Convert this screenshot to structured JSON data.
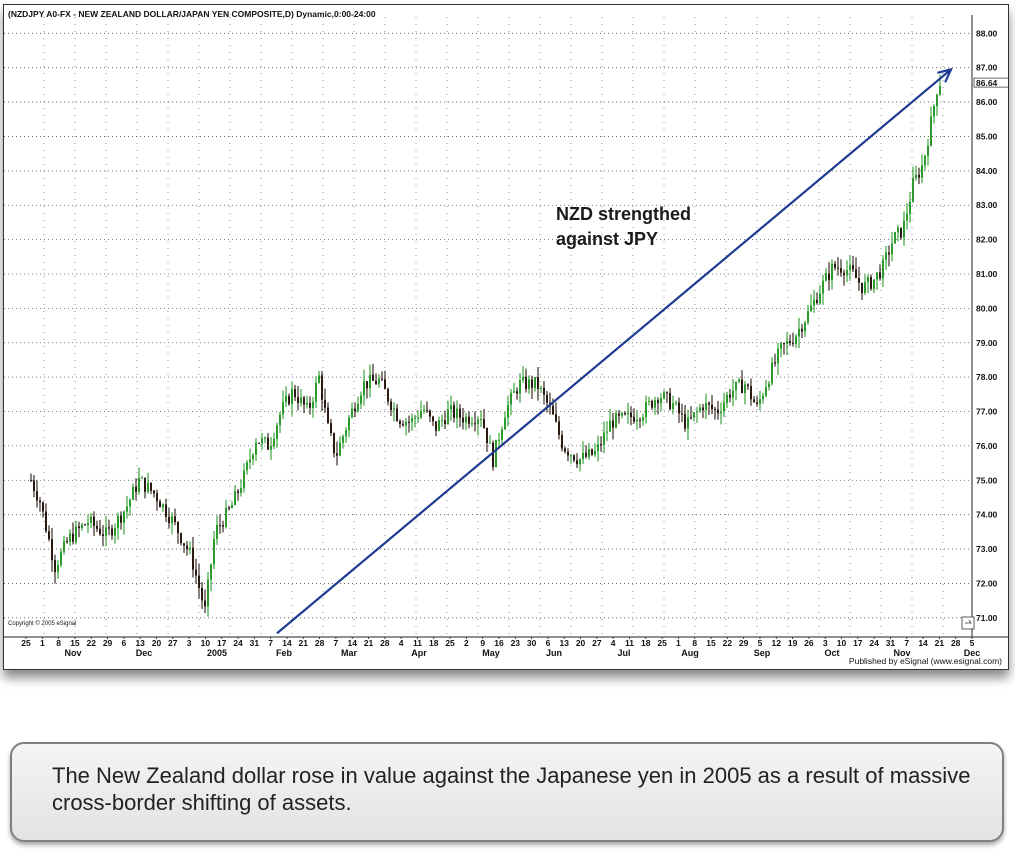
{
  "chart_data": {
    "type": "candlestick",
    "title": "(NZDJPY A0-FX - NEW ZEALAND DOLLAR/JAPAN YEN COMPOSITE,D) Dynamic,0:00-24:00",
    "ylim": [
      70.5,
      88.3
    ],
    "y_ticks": [
      "88.00",
      "87.00",
      "86.64",
      "86.00",
      "85.00",
      "84.00",
      "83.00",
      "82.00",
      "81.00",
      "80.00",
      "79.00",
      "78.00",
      "77.00",
      "76.00",
      "75.00",
      "74.00",
      "73.00",
      "72.00",
      "71.00"
    ],
    "last_price": 86.64,
    "x_day_labels": [
      "25",
      "1",
      "8",
      "15",
      "22",
      "29",
      "6",
      "13",
      "20",
      "27",
      "3",
      "10",
      "17",
      "24",
      "31",
      "7",
      "14",
      "21",
      "28",
      "7",
      "14",
      "21",
      "28",
      "4",
      "11",
      "18",
      "25",
      "2",
      "9",
      "16",
      "23",
      "30",
      "6",
      "13",
      "20",
      "27",
      "4",
      "11",
      "18",
      "25",
      "1",
      "8",
      "15",
      "22",
      "29",
      "5",
      "12",
      "19",
      "26",
      "3",
      "10",
      "17",
      "24",
      "31",
      "7",
      "14",
      "21",
      "28",
      "5"
    ],
    "x_month_labels": [
      "Nov",
      "Dec",
      "2005",
      "Feb",
      "Mar",
      "Apr",
      "May",
      "Jun",
      "Jul",
      "Aug",
      "Sep",
      "Oct",
      "Nov",
      "Dec"
    ],
    "price_path": [
      [
        0,
        75.0
      ],
      [
        9,
        74.4
      ],
      [
        24,
        72.5
      ],
      [
        38,
        73.3
      ],
      [
        57,
        73.8
      ],
      [
        76,
        73.4
      ],
      [
        95,
        74.2
      ],
      [
        108,
        75.0
      ],
      [
        124,
        74.6
      ],
      [
        142,
        73.8
      ],
      [
        160,
        72.8
      ],
      [
        174,
        71.2
      ],
      [
        184,
        73.5
      ],
      [
        200,
        74.2
      ],
      [
        213,
        75.1
      ],
      [
        225,
        76.2
      ],
      [
        238,
        76.0
      ],
      [
        250,
        77.0
      ],
      [
        262,
        77.6
      ],
      [
        277,
        77.0
      ],
      [
        288,
        78.0
      ],
      [
        297,
        76.5
      ],
      [
        305,
        75.7
      ],
      [
        318,
        76.8
      ],
      [
        332,
        77.8
      ],
      [
        348,
        77.9
      ],
      [
        368,
        76.8
      ],
      [
        380,
        76.7
      ],
      [
        392,
        77.1
      ],
      [
        404,
        76.5
      ],
      [
        418,
        77.0
      ],
      [
        434,
        76.8
      ],
      [
        450,
        76.9
      ],
      [
        462,
        75.6
      ],
      [
        474,
        77.0
      ],
      [
        488,
        77.8
      ],
      [
        506,
        77.8
      ],
      [
        520,
        77.0
      ],
      [
        532,
        76.0
      ],
      [
        548,
        75.6
      ],
      [
        565,
        75.8
      ],
      [
        580,
        76.7
      ],
      [
        596,
        76.8
      ],
      [
        612,
        77.0
      ],
      [
        628,
        77.5
      ],
      [
        642,
        77.2
      ],
      [
        656,
        76.6
      ],
      [
        672,
        77.2
      ],
      [
        686,
        77.0
      ],
      [
        700,
        77.6
      ],
      [
        714,
        77.8
      ],
      [
        726,
        77.1
      ],
      [
        736,
        77.9
      ],
      [
        750,
        78.8
      ],
      [
        764,
        79.2
      ],
      [
        778,
        79.9
      ],
      [
        790,
        80.6
      ],
      [
        802,
        81.2
      ],
      [
        812,
        81.2
      ],
      [
        822,
        81.0
      ],
      [
        832,
        80.6
      ],
      [
        842,
        80.8
      ],
      [
        852,
        81.2
      ],
      [
        862,
        82.0
      ],
      [
        872,
        82.3
      ],
      [
        882,
        83.6
      ],
      [
        892,
        84.2
      ],
      [
        900,
        85.4
      ],
      [
        906,
        86.4
      ],
      [
        910,
        86.64
      ]
    ],
    "trend_line": {
      "from": [
        6,
        70.55
      ],
      "to": [
        893,
        86.95
      ]
    }
  },
  "annotation": {
    "line1": "NZD strengthed",
    "line2": "against JPY"
  },
  "copyright": "Copyright © 2005 eSignal",
  "publisher": "Published by eSignal (www.esignal.com)",
  "caption": "The New Zealand dollar rose in value against the Japanese yen in 2005 as a result of massive cross-border shifting of assets.",
  "colors": {
    "up": "#2c9a2c",
    "down": "#2b1a12",
    "trend": "#1f3a93"
  }
}
